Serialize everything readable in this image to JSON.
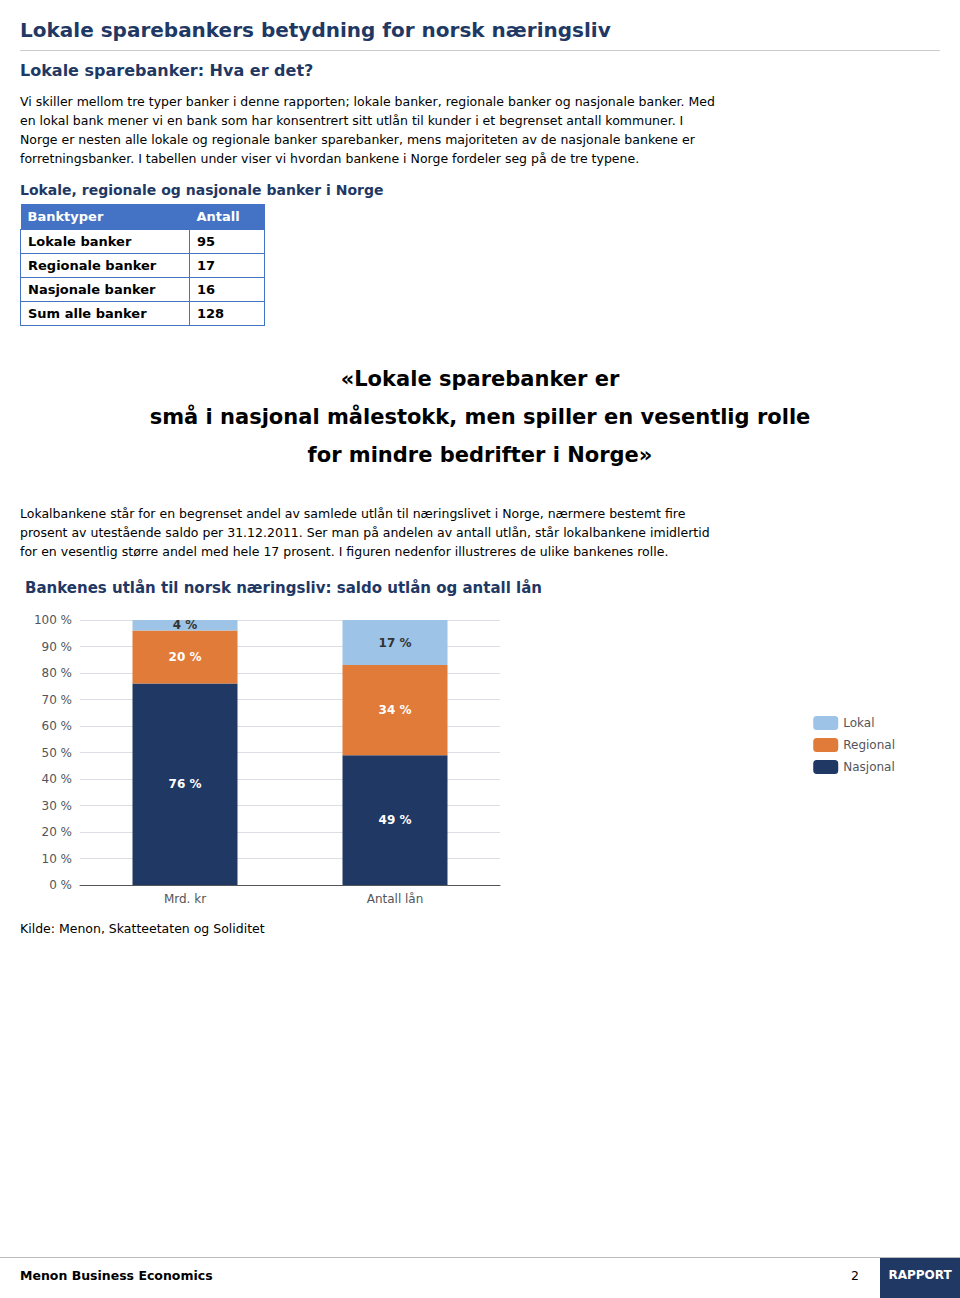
{
  "page": {
    "title": "Lokale sparebankers betydning for norsk næringsliv",
    "title_color": "#1F3864",
    "section_title": "Lokale sparebanker: Hva er det?",
    "body_text_1": [
      "Vi skiller mellom tre typer banker i denne rapporten; lokale banker, regionale banker og nasjonale banker. Med",
      "en lokal bank mener vi en bank som har konsentrert sitt utlån til kunder i et begrenset antall kommuner. I",
      "Norge er nesten alle lokale og regionale banker sparebanker, mens majoriteten av de nasjonale bankene er",
      "forretningsbanker. I tabellen under viser vi hvordan bankene i Norge fordeler seg på de tre typene."
    ],
    "table": {
      "title": "Lokale, regionale og nasjonale banker i Norge",
      "header": [
        "Banktyper",
        "Antall"
      ],
      "rows": [
        [
          "Lokale banker",
          "95"
        ],
        [
          "Regionale banker",
          "17"
        ],
        [
          "Nasjonale banker",
          "16"
        ],
        [
          "Sum alle banker",
          "128"
        ]
      ],
      "header_color": "#4472C4",
      "border_color": "#4472C4"
    },
    "quote": [
      "«Lokale sparebanker er",
      "små i nasjonal målestokk, men spiller en vesentlig rolle",
      "for mindre bedrifter i Norge»"
    ],
    "body_text_2": [
      "Lokalbankene står for en begrenset andel av samlede utlån til næringslivet i Norge, nærmere bestemt fire",
      "prosent av utestående saldo per 31.12.2011. Ser man på andelen av antall utlån, står lokalbankene imidlertid",
      "for en vesentlig større andel med hele 17 prosent. I figuren nedenfor illustreres de ulike bankenes rolle."
    ],
    "source": "Kilde: Menon, Skatteetaten og Soliditet",
    "footer": {
      "left": "Menon Business Economics",
      "page": "2",
      "right": "RAPPORT",
      "color": "#1F3864"
    }
  },
  "chart_data": {
    "type": "bar",
    "title": "Bankenes utlån til norsk næringsliv: saldo utlån og antall lån",
    "categories": [
      "Mrd. kr",
      "Antall lån"
    ],
    "stacked": true,
    "series": [
      {
        "name": "Nasjonal",
        "color": "#1F3864",
        "values": [
          76,
          49
        ],
        "value_labels": [
          "76 %",
          "49 %"
        ]
      },
      {
        "name": "Regional",
        "color": "#E07B39",
        "values": [
          20,
          34
        ],
        "value_labels": [
          "20 %",
          "34 %"
        ]
      },
      {
        "name": "Lokal",
        "color": "#9DC3E6",
        "values": [
          4,
          17
        ],
        "value_labels": [
          "4 %",
          "17 %"
        ]
      }
    ],
    "data_labels": true,
    "ylim": [
      0,
      100
    ],
    "yticks": [
      {
        "value": 0,
        "label": "0 %"
      },
      {
        "value": 10,
        "label": "10 %"
      },
      {
        "value": 20,
        "label": "20 %"
      },
      {
        "value": 30,
        "label": "30 %"
      },
      {
        "value": 40,
        "label": "40 %"
      },
      {
        "value": 50,
        "label": "50 %"
      },
      {
        "value": 60,
        "label": "60 %"
      },
      {
        "value": 70,
        "label": "70 %"
      },
      {
        "value": 80,
        "label": "80 %"
      },
      {
        "value": 90,
        "label": "90 %"
      },
      {
        "value": 100,
        "label": "100 %"
      }
    ],
    "grid": true,
    "legend": "right"
  }
}
